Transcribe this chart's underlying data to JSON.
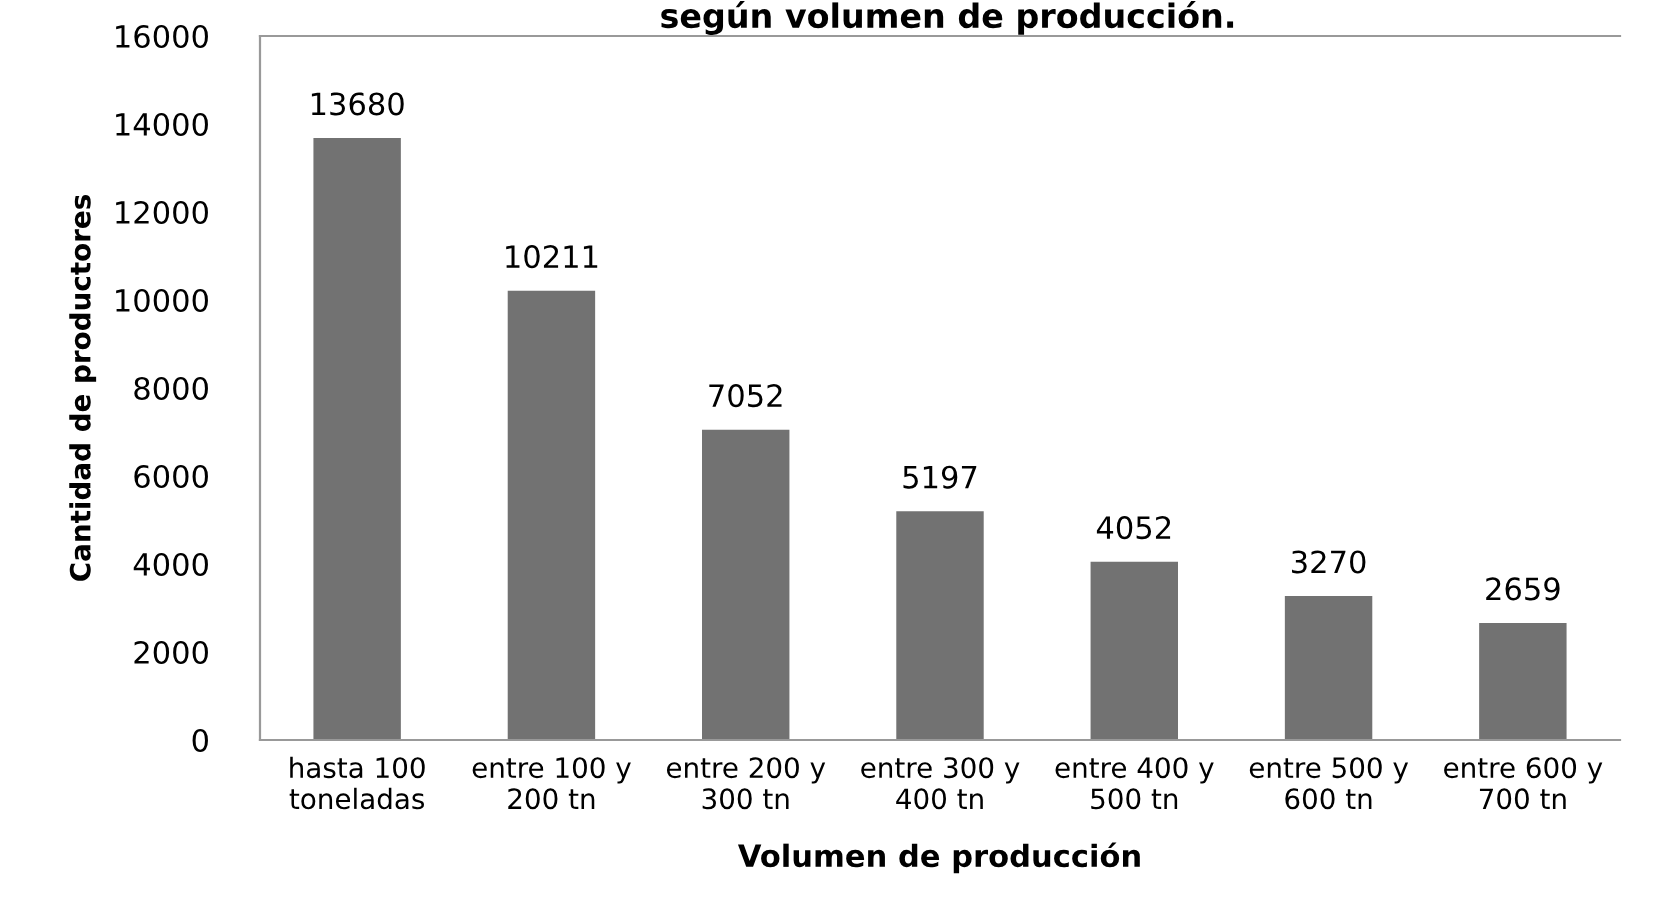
{
  "chart_data": {
    "type": "bar",
    "title": "según volumen de producción.",
    "xlabel": "Volumen de producción",
    "ylabel": "Cantidad de productores",
    "categories": [
      "hasta 100\ntoneladas",
      "entre 100 y\n200 tn",
      "entre 200 y\n300 tn",
      "entre 300 y\n400 tn",
      "entre 400 y\n500 tn",
      "entre 500 y\n600 tn",
      "entre 600 y\n700 tn"
    ],
    "values": [
      13680,
      10211,
      7052,
      5197,
      4052,
      3270,
      2659
    ],
    "color": "#727272",
    "ylim": [
      0,
      16000
    ],
    "yticks": [
      0,
      2000,
      4000,
      6000,
      8000,
      10000,
      12000,
      14000,
      16000
    ],
    "grid": false,
    "data_labels": true
  }
}
